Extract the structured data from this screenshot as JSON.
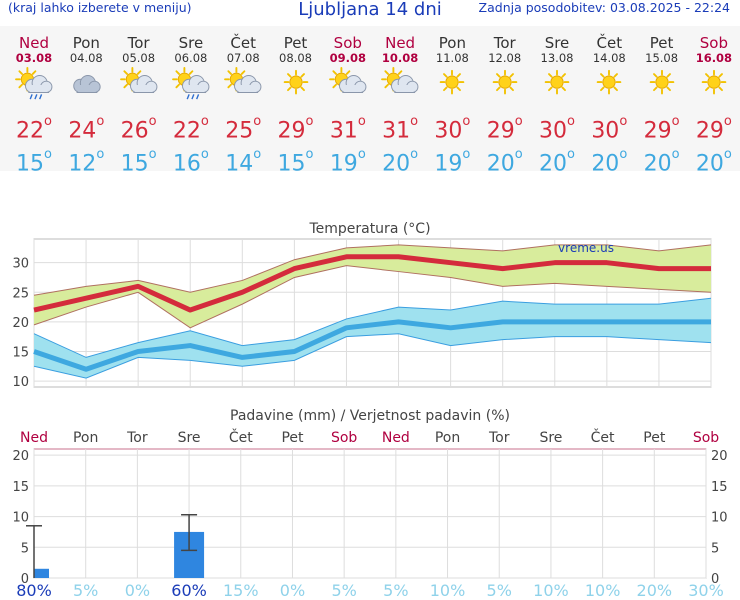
{
  "header": {
    "menu_hint": "(kraj lahko izberete v meniju)",
    "title": "Ljubljana 14 dni",
    "updated": "Zadnja posodobitev: 03.08.2025 - 22:24"
  },
  "days": [
    {
      "name": "Ned",
      "date": "03.08",
      "weekend": true,
      "icon": "sun-cloud-rain-icon",
      "max": "22",
      "min": "15"
    },
    {
      "name": "Pon",
      "date": "04.08",
      "weekend": false,
      "icon": "cloudy-icon",
      "max": "24",
      "min": "12"
    },
    {
      "name": "Tor",
      "date": "05.08",
      "weekend": false,
      "icon": "sun-cloud-icon",
      "max": "26",
      "min": "15"
    },
    {
      "name": "Sre",
      "date": "06.08",
      "weekend": false,
      "icon": "sun-cloud-rain-icon",
      "max": "22",
      "min": "16"
    },
    {
      "name": "Čet",
      "date": "07.08",
      "weekend": false,
      "icon": "sun-cloud-icon",
      "max": "25",
      "min": "14"
    },
    {
      "name": "Pet",
      "date": "08.08",
      "weekend": false,
      "icon": "sun-icon",
      "max": "29",
      "min": "15"
    },
    {
      "name": "Sob",
      "date": "09.08",
      "weekend": true,
      "icon": "sun-cloud-icon",
      "max": "31",
      "min": "19"
    },
    {
      "name": "Ned",
      "date": "10.08",
      "weekend": true,
      "icon": "sun-cloud-icon",
      "max": "31",
      "min": "20"
    },
    {
      "name": "Pon",
      "date": "11.08",
      "weekend": false,
      "icon": "sun-icon",
      "max": "30",
      "min": "19"
    },
    {
      "name": "Tor",
      "date": "12.08",
      "weekend": false,
      "icon": "sun-icon",
      "max": "29",
      "min": "20"
    },
    {
      "name": "Sre",
      "date": "13.08",
      "weekend": false,
      "icon": "sun-icon",
      "max": "30",
      "min": "20"
    },
    {
      "name": "Čet",
      "date": "14.08",
      "weekend": false,
      "icon": "sun-icon",
      "max": "30",
      "min": "20"
    },
    {
      "name": "Pet",
      "date": "15.08",
      "weekend": false,
      "icon": "sun-icon",
      "max": "29",
      "min": "20"
    },
    {
      "name": "Sob",
      "date": "16.08",
      "weekend": true,
      "icon": "sun-icon",
      "max": "29",
      "min": "20"
    }
  ],
  "colors": {
    "weekend": "#b00040",
    "tmax": "#d42b3c",
    "tmin": "#3ea8e0",
    "max_band": "#d8ec9c",
    "min_band": "#9fe1ef",
    "bar": "#2f86e0"
  },
  "chart_data": [
    {
      "type": "line",
      "title": "Temperatura (°C)",
      "watermark": "vreme.us",
      "categories": [
        "03.08",
        "04.08",
        "05.08",
        "06.08",
        "07.08",
        "08.08",
        "09.08",
        "10.08",
        "11.08",
        "12.08",
        "13.08",
        "14.08",
        "15.08",
        "16.08"
      ],
      "ylim": [
        9,
        34
      ],
      "yticks": [
        10,
        15,
        20,
        25,
        30
      ],
      "grid": true,
      "series": [
        {
          "key": "max",
          "values": [
            22,
            24,
            26,
            22,
            25,
            29,
            31,
            31,
            30,
            29,
            30,
            30,
            29,
            29
          ],
          "upper": [
            24.5,
            26,
            27,
            25,
            27,
            30.5,
            32.5,
            33,
            32.5,
            32,
            33,
            33,
            32,
            33
          ],
          "lower": [
            19.5,
            22.5,
            25,
            19,
            23,
            27.5,
            29.5,
            28.5,
            27.5,
            26,
            26.5,
            26,
            25.5,
            25
          ]
        },
        {
          "key": "min",
          "values": [
            15,
            12,
            15,
            16,
            14,
            15,
            19,
            20,
            19,
            20,
            20,
            20,
            20,
            20
          ],
          "upper": [
            18,
            14,
            16.5,
            18.5,
            16,
            17,
            20.5,
            22.5,
            22,
            23.5,
            23,
            23,
            23,
            24
          ],
          "lower": [
            12.5,
            10.5,
            14,
            13.5,
            12.5,
            13.5,
            17.5,
            18,
            16,
            17,
            17.5,
            17.5,
            17,
            16.5
          ]
        }
      ]
    },
    {
      "type": "bar",
      "title": "Padavine (mm) / Verjetnost padavin (%)",
      "categories": [
        "Ned",
        "Pon",
        "Tor",
        "Sre",
        "Čet",
        "Pet",
        "Sob",
        "Ned",
        "Pon",
        "Tor",
        "Sre",
        "Čet",
        "Pet",
        "Sob"
      ],
      "weekend": [
        true,
        false,
        false,
        false,
        false,
        false,
        true,
        true,
        false,
        false,
        false,
        false,
        false,
        true
      ],
      "values": [
        1.5,
        0,
        0,
        7.5,
        0,
        0,
        0,
        0,
        0,
        0,
        0,
        0,
        0,
        0
      ],
      "error_high": [
        8.5,
        null,
        null,
        10.3,
        null,
        null,
        null,
        null,
        null,
        null,
        null,
        null,
        null,
        null
      ],
      "error_low": [
        0,
        null,
        null,
        4.5,
        null,
        null,
        null,
        null,
        null,
        null,
        null,
        null,
        null,
        null
      ],
      "probability": [
        "80%",
        "5%",
        "0%",
        "60%",
        "15%",
        "0%",
        "5%",
        "5%",
        "10%",
        "5%",
        "10%",
        "10%",
        "20%",
        "30%"
      ],
      "prob_numeric": [
        80,
        5,
        0,
        60,
        15,
        0,
        5,
        5,
        10,
        5,
        10,
        10,
        20,
        30
      ],
      "ylim": [
        0,
        21
      ],
      "yticks": [
        0,
        5,
        10,
        15,
        20
      ]
    }
  ]
}
